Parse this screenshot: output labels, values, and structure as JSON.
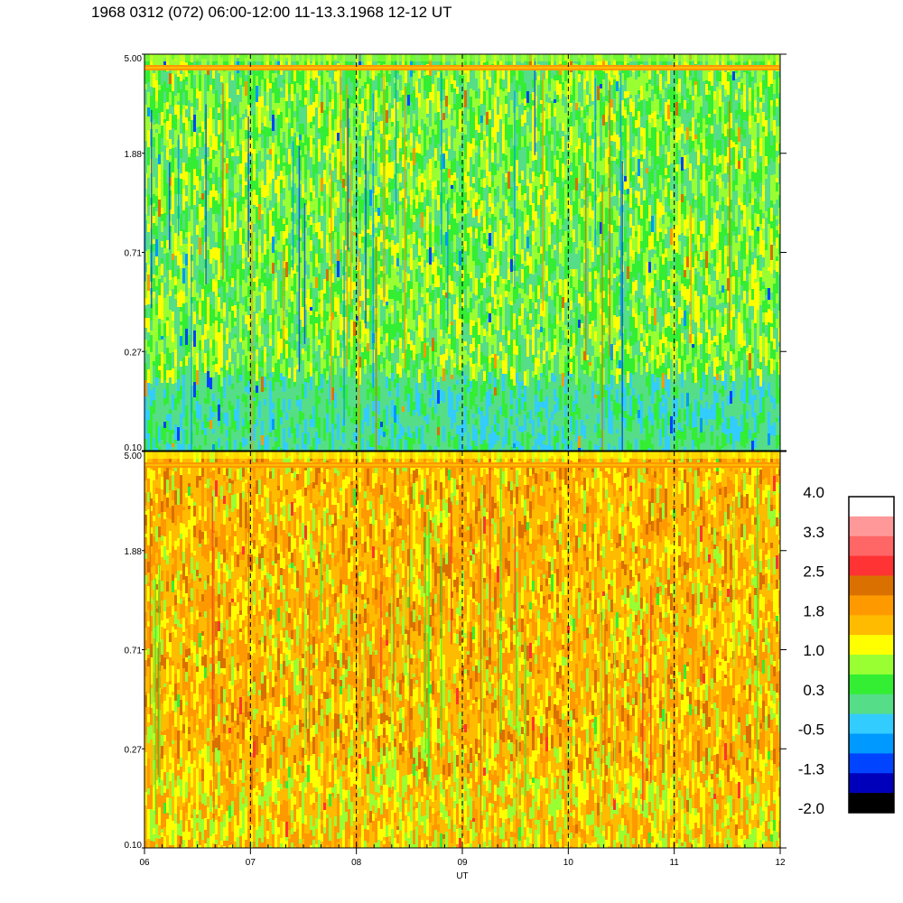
{
  "title": "1968 0312 (072) 06:00-12:00 11-13.3.1968  12-12 UT",
  "chart_data": [
    {
      "type": "heatmap",
      "panel": "top",
      "x_range": [
        6,
        12
      ],
      "y_ticks": [
        "5.00",
        "1.88",
        "0.71",
        "0.27",
        "0.10"
      ],
      "dominant_levels": [
        "0.3",
        "1.0"
      ],
      "band_near_top_level": "1.8"
    },
    {
      "type": "heatmap",
      "panel": "bottom",
      "x_range": [
        6,
        12
      ],
      "y_ticks": [
        "5.00",
        "1.88",
        "0.71",
        "0.27",
        "0.10"
      ],
      "dominant_levels": [
        "1.0",
        "1.8"
      ],
      "band_near_top_level": "1.8"
    }
  ],
  "x_axis": {
    "label": "UT",
    "ticks": [
      "06",
      "07",
      "08",
      "09",
      "10",
      "11",
      "12"
    ],
    "dashed_hours": [
      7,
      8,
      9,
      10,
      11
    ]
  },
  "colorbar": {
    "labels": [
      "4.0",
      "3.3",
      "2.5",
      "1.8",
      "1.0",
      "0.3",
      "-0.5",
      "-1.3",
      "-2.0"
    ],
    "colors": [
      "#ffffff",
      "#ff9999",
      "#ff6666",
      "#ff3333",
      "#d97000",
      "#ff9900",
      "#ffbb00",
      "#ffff00",
      "#99ff33",
      "#33ee33",
      "#55dd88",
      "#33ccff",
      "#0099ff",
      "#0044ff",
      "#0000bb",
      "#000000"
    ]
  }
}
